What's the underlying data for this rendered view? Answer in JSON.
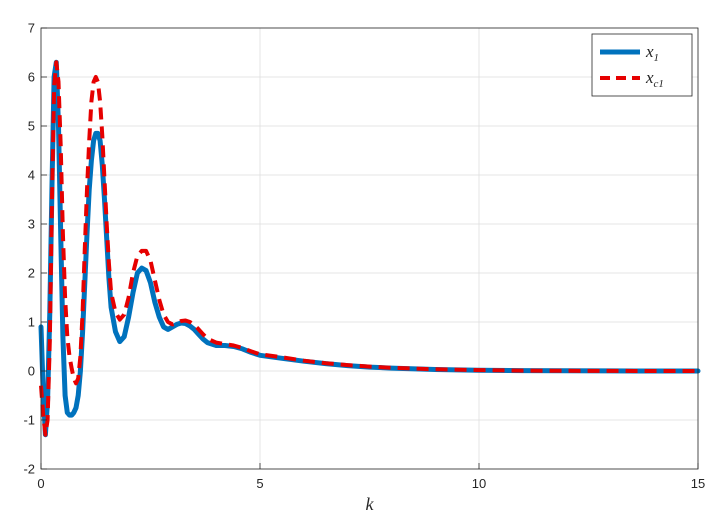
{
  "chart_data": {
    "type": "line",
    "title": "",
    "xlabel": "k",
    "ylabel": "",
    "xlim": [
      0,
      15
    ],
    "ylim": [
      -2,
      7
    ],
    "xticks": [
      0,
      5,
      10,
      15
    ],
    "yticks": [
      -2,
      -1,
      0,
      1,
      2,
      3,
      4,
      5,
      6,
      7
    ],
    "grid": true,
    "legend_position": "top-right",
    "series": [
      {
        "name": "x",
        "name_sub": "1",
        "color": "#0072BD",
        "style": "solid",
        "x": [
          0,
          0.05,
          0.1,
          0.15,
          0.2,
          0.25,
          0.3,
          0.35,
          0.4,
          0.45,
          0.5,
          0.55,
          0.6,
          0.65,
          0.7,
          0.75,
          0.8,
          0.85,
          0.9,
          0.95,
          1.0,
          1.05,
          1.1,
          1.15,
          1.2,
          1.25,
          1.3,
          1.35,
          1.4,
          1.45,
          1.5,
          1.55,
          1.6,
          1.7,
          1.8,
          1.9,
          2.0,
          2.1,
          2.2,
          2.3,
          2.4,
          2.5,
          2.6,
          2.7,
          2.8,
          2.9,
          3.0,
          3.1,
          3.2,
          3.3,
          3.4,
          3.5,
          3.6,
          3.7,
          3.8,
          4.0,
          4.2,
          4.4,
          4.6,
          4.8,
          5.0,
          5.5,
          6.0,
          6.5,
          7.0,
          7.5,
          8.0,
          9.0,
          10.0,
          11.0,
          12.0,
          13.0,
          14.0,
          15.0
        ],
        "y": [
          0.9,
          -0.4,
          -1.3,
          -0.6,
          1.2,
          3.8,
          6.0,
          6.3,
          5.0,
          2.8,
          0.7,
          -0.5,
          -0.85,
          -0.9,
          -0.9,
          -0.85,
          -0.75,
          -0.5,
          0.0,
          0.8,
          1.8,
          2.8,
          3.7,
          4.3,
          4.7,
          4.85,
          4.85,
          4.7,
          4.2,
          3.5,
          2.7,
          1.9,
          1.3,
          0.8,
          0.6,
          0.7,
          1.1,
          1.6,
          2.0,
          2.1,
          2.05,
          1.8,
          1.4,
          1.1,
          0.9,
          0.85,
          0.9,
          0.95,
          0.98,
          0.97,
          0.92,
          0.85,
          0.75,
          0.65,
          0.58,
          0.52,
          0.52,
          0.5,
          0.45,
          0.38,
          0.32,
          0.26,
          0.2,
          0.15,
          0.11,
          0.08,
          0.06,
          0.03,
          0.015,
          0.008,
          0.004,
          0.002,
          0.001,
          0.0
        ]
      },
      {
        "name": "x",
        "name_sub": "c1",
        "color": "#E60000",
        "style": "dashed",
        "x": [
          0,
          0.05,
          0.1,
          0.15,
          0.2,
          0.25,
          0.3,
          0.35,
          0.4,
          0.45,
          0.5,
          0.55,
          0.6,
          0.65,
          0.7,
          0.75,
          0.8,
          0.85,
          0.9,
          0.95,
          1.0,
          1.05,
          1.1,
          1.15,
          1.2,
          1.25,
          1.3,
          1.35,
          1.4,
          1.45,
          1.5,
          1.55,
          1.6,
          1.7,
          1.8,
          1.9,
          2.0,
          2.1,
          2.2,
          2.3,
          2.4,
          2.5,
          2.6,
          2.7,
          2.8,
          2.9,
          3.0,
          3.1,
          3.2,
          3.3,
          3.4,
          3.5,
          3.6,
          3.7,
          3.8,
          4.0,
          4.2,
          4.4,
          4.6,
          4.8,
          5.0,
          5.5,
          6.0,
          6.5,
          7.0,
          7.5,
          8.0,
          9.0,
          10.0,
          11.0,
          12.0,
          13.0,
          14.0,
          15.0
        ],
        "y": [
          -0.3,
          -0.9,
          -1.3,
          -1.0,
          0.6,
          3.5,
          5.8,
          6.3,
          5.9,
          4.6,
          2.8,
          1.5,
          0.7,
          0.3,
          0.05,
          -0.15,
          -0.25,
          -0.15,
          0.3,
          1.2,
          2.5,
          3.7,
          4.7,
          5.5,
          5.9,
          6.0,
          5.9,
          5.5,
          4.8,
          3.9,
          3.0,
          2.2,
          1.6,
          1.2,
          1.05,
          1.15,
          1.5,
          2.0,
          2.35,
          2.45,
          2.45,
          2.25,
          1.85,
          1.45,
          1.15,
          1.0,
          0.95,
          0.98,
          1.02,
          1.03,
          1.0,
          0.94,
          0.85,
          0.75,
          0.66,
          0.58,
          0.55,
          0.52,
          0.47,
          0.4,
          0.34,
          0.28,
          0.21,
          0.16,
          0.12,
          0.09,
          0.065,
          0.035,
          0.018,
          0.009,
          0.005,
          0.003,
          0.001,
          0.0
        ]
      }
    ]
  }
}
